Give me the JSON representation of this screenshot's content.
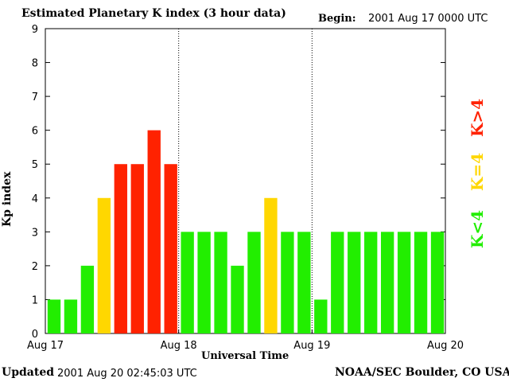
{
  "header": {
    "title": "Estimated Planetary K index (3 hour data)",
    "begin_label": "Begin:",
    "begin_value": "2001 Aug 17 0000 UTC"
  },
  "footer": {
    "updated_label": "Updated",
    "updated_value": "2001 Aug 20 02:45:03 UTC",
    "credit": "NOAA/SEC Boulder, CO USA"
  },
  "legend": {
    "low": "K<4",
    "mid": "K=4",
    "high": "K>4"
  },
  "colors": {
    "low": "#22ee00",
    "mid": "#ffd700",
    "high": "#ff2200"
  },
  "chart_data": {
    "type": "bar",
    "title": "Estimated Planetary K index (3 hour data)",
    "xlabel": "Universal Time",
    "ylabel": "Kp index",
    "ylim": [
      0,
      9
    ],
    "yticks": [
      "0",
      "1",
      "2",
      "3",
      "4",
      "5",
      "6",
      "7",
      "8",
      "9"
    ],
    "xticks": [
      "Aug 17",
      "Aug 18",
      "Aug 19",
      "Aug 20"
    ],
    "day_separators": [
      8,
      16
    ],
    "values": [
      1,
      1,
      2,
      4,
      5,
      5,
      6,
      5,
      3,
      3,
      3,
      2,
      3,
      4,
      3,
      3,
      1,
      3,
      3,
      3,
      3,
      3,
      3,
      3
    ]
  }
}
